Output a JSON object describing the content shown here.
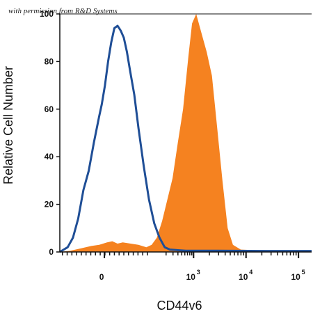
{
  "watermark": "with permission from R&D Systems",
  "chart_data": {
    "type": "area",
    "xlabel": "CD44v6",
    "ylabel": "Relative Cell Number",
    "x_scale": "biexponential",
    "ylim": [
      0,
      100
    ],
    "yticks": [
      0,
      20,
      40,
      60,
      80,
      100
    ],
    "xticks": [
      {
        "base": "0",
        "exp": ""
      },
      {
        "base": "10",
        "exp": "3"
      },
      {
        "base": "10",
        "exp": "4"
      },
      {
        "base": "10",
        "exp": "5"
      }
    ],
    "grid": false,
    "legend": "none",
    "series": [
      {
        "color": "#1f4e96",
        "style": "outline",
        "points": [
          [
            0,
            0
          ],
          [
            0.15,
            2
          ],
          [
            0.25,
            6
          ],
          [
            0.35,
            14
          ],
          [
            0.45,
            26
          ],
          [
            0.55,
            34
          ],
          [
            0.65,
            46
          ],
          [
            0.75,
            57
          ],
          [
            0.8,
            62
          ],
          [
            0.86,
            70
          ],
          [
            0.92,
            80
          ],
          [
            0.98,
            88
          ],
          [
            1.04,
            94
          ],
          [
            1.1,
            95
          ],
          [
            1.16,
            93
          ],
          [
            1.22,
            90
          ],
          [
            1.28,
            84
          ],
          [
            1.34,
            76
          ],
          [
            1.42,
            66
          ],
          [
            1.5,
            52
          ],
          [
            1.6,
            36
          ],
          [
            1.7,
            22
          ],
          [
            1.8,
            12
          ],
          [
            1.9,
            6
          ],
          [
            2.0,
            2
          ],
          [
            2.1,
            1
          ],
          [
            2.4,
            0.5
          ],
          [
            3.0,
            0.5
          ],
          [
            4.0,
            0.4
          ],
          [
            4.8,
            0.4
          ]
        ]
      },
      {
        "color": "#f58220",
        "style": "filled",
        "points": [
          [
            0,
            0
          ],
          [
            0.2,
            0.5
          ],
          [
            0.4,
            1.5
          ],
          [
            0.6,
            2.5
          ],
          [
            0.75,
            3
          ],
          [
            0.9,
            4
          ],
          [
            1.0,
            4.5
          ],
          [
            1.1,
            3.5
          ],
          [
            1.2,
            4
          ],
          [
            1.35,
            3.5
          ],
          [
            1.5,
            3
          ],
          [
            1.65,
            2
          ],
          [
            1.75,
            3
          ],
          [
            1.85,
            6
          ],
          [
            1.95,
            13
          ],
          [
            2.05,
            22
          ],
          [
            2.15,
            31
          ],
          [
            2.25,
            46
          ],
          [
            2.35,
            60
          ],
          [
            2.45,
            82
          ],
          [
            2.52,
            96
          ],
          [
            2.6,
            100
          ],
          [
            2.7,
            92
          ],
          [
            2.8,
            84
          ],
          [
            2.9,
            74
          ],
          [
            3.0,
            52
          ],
          [
            3.1,
            30
          ],
          [
            3.2,
            10
          ],
          [
            3.3,
            3
          ],
          [
            3.45,
            1
          ],
          [
            4.0,
            0.5
          ],
          [
            4.8,
            0.5
          ]
        ]
      }
    ]
  }
}
